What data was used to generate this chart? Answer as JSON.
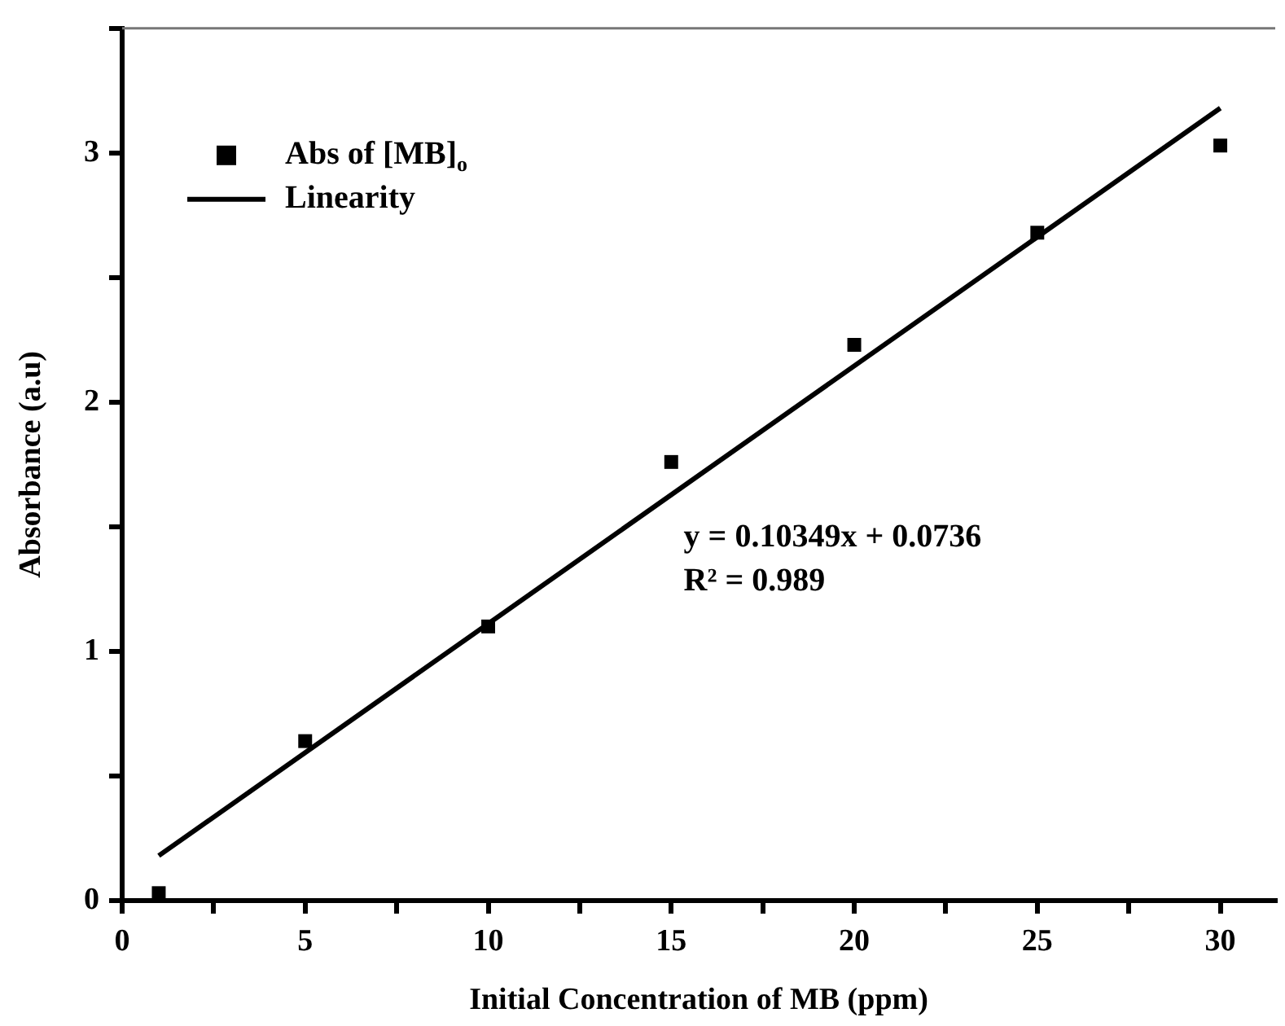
{
  "chart_data": {
    "type": "scatter",
    "xlabel": "Initial Concentration of MB (ppm)",
    "ylabel": "Absorbance (a.u)",
    "xlim": [
      0,
      31.5
    ],
    "xticks": [
      0,
      {
        "value": 2.5,
        "label": null
      },
      5,
      {
        "value": 7.5,
        "label": null
      },
      10,
      {
        "value": 12.5,
        "label": null
      },
      15,
      {
        "value": 17.5,
        "label": null
      },
      20,
      {
        "value": 22.5,
        "label": null
      },
      25,
      {
        "value": 27.5,
        "label": null
      },
      30
    ],
    "ylim": [
      0,
      3.5
    ],
    "yticks": [
      0,
      {
        "value": 0.5,
        "label": null
      },
      1,
      {
        "value": 1.5,
        "label": null
      },
      2,
      {
        "value": 2.5,
        "label": null
      },
      3,
      {
        "value": 3.5,
        "label": null
      }
    ],
    "series": [
      {
        "name": "Abs of [MB]$_{o}$",
        "marker": "square",
        "color": "#000000",
        "x": [
          1,
          5,
          10,
          15,
          20,
          25,
          30
        ],
        "values": [
          0.03,
          0.64,
          1.1,
          1.76,
          2.23,
          2.68,
          3.03
        ]
      },
      {
        "name": "Linearity",
        "type": "line",
        "marker": "none",
        "line_style": "solid",
        "color": "#000000",
        "x": [
          1,
          30
        ],
        "values": [
          0.18,
          3.18
        ]
      }
    ],
    "annotations": [
      "y = 0.10349x + 0.0736",
      "R² = 0.989"
    ],
    "grid": false,
    "legend": "top left"
  }
}
